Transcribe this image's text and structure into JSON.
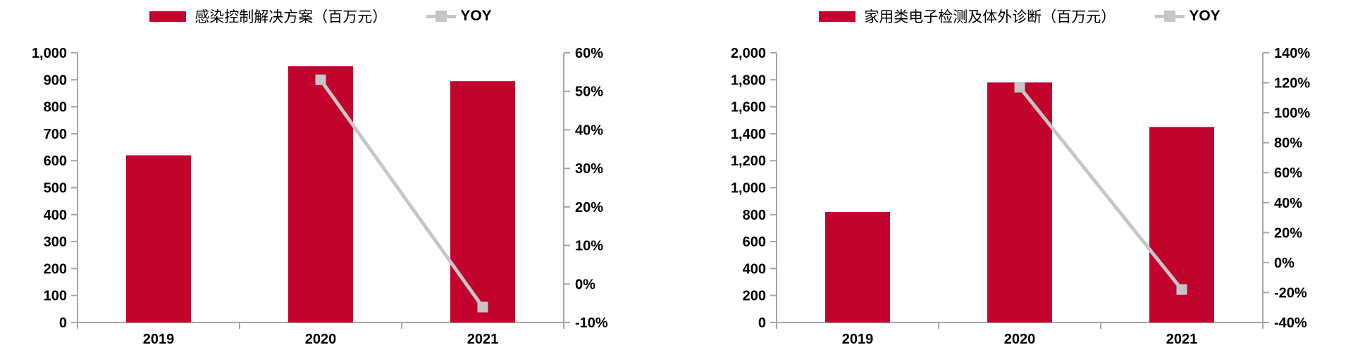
{
  "colors": {
    "bar": "#C1032E",
    "line": "#C6C6C6",
    "axis": "#A6A6A6",
    "text": "#000000"
  },
  "charts": [
    {
      "name": "infection-control-revenue",
      "legend": {
        "bar_label": "感染控制解决方案（百万元）",
        "line_label": "YOY"
      },
      "chart_data": {
        "type": "bar",
        "categories": [
          "2019",
          "2020",
          "2021"
        ],
        "series": [
          {
            "name": "感染控制解决方案（百万元）",
            "type": "bar",
            "axis": "left",
            "values": [
              620,
              950,
              895
            ]
          },
          {
            "name": "YOY",
            "type": "line",
            "axis": "right",
            "values": [
              null,
              0.53,
              -0.06
            ]
          }
        ],
        "left_axis": {
          "min": 0,
          "max": 1000,
          "step": 100,
          "tick_labels": [
            "0",
            "100",
            "200",
            "300",
            "400",
            "500",
            "600",
            "700",
            "800",
            "900",
            "1,000"
          ]
        },
        "right_axis": {
          "min": -0.1,
          "max": 0.6,
          "step": 0.1,
          "tick_labels": [
            "-10%",
            "0%",
            "10%",
            "20%",
            "30%",
            "40%",
            "50%",
            "60%"
          ]
        },
        "grid": "off",
        "legend_position": "top-center"
      }
    },
    {
      "name": "home-electronic-testing-ivd-revenue",
      "legend": {
        "bar_label": "家用类电子检测及体外诊断（百万元）",
        "line_label": "YOY"
      },
      "chart_data": {
        "type": "bar",
        "categories": [
          "2019",
          "2020",
          "2021"
        ],
        "series": [
          {
            "name": "家用类电子检测及体外诊断（百万元）",
            "type": "bar",
            "axis": "left",
            "values": [
              820,
              1780,
              1450
            ]
          },
          {
            "name": "YOY",
            "type": "line",
            "axis": "right",
            "values": [
              null,
              1.17,
              -0.18
            ]
          }
        ],
        "left_axis": {
          "min": 0,
          "max": 2000,
          "step": 200,
          "tick_labels": [
            "0",
            "200",
            "400",
            "600",
            "800",
            "1,000",
            "1,200",
            "1,400",
            "1,600",
            "1,800",
            "2,000"
          ]
        },
        "right_axis": {
          "min": -0.4,
          "max": 1.4,
          "step": 0.2,
          "tick_labels": [
            "-40%",
            "-20%",
            "0%",
            "20%",
            "40%",
            "60%",
            "80%",
            "100%",
            "120%",
            "140%"
          ]
        },
        "grid": "off",
        "legend_position": "top-center"
      }
    }
  ]
}
